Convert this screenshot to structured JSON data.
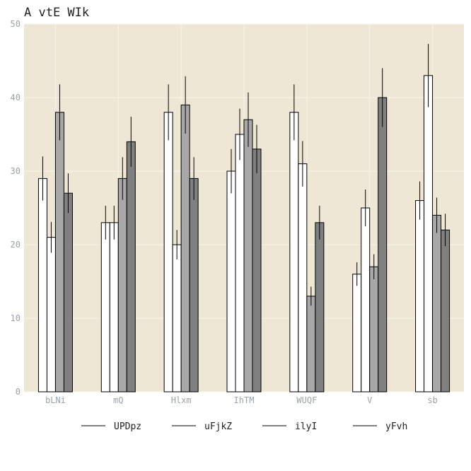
{
  "chart_data": {
    "type": "bar",
    "title": "A vtE WIk",
    "xlabel": "",
    "ylabel": "",
    "ylim": [
      0,
      50
    ],
    "yticks": [
      0,
      10,
      20,
      30,
      40,
      50
    ],
    "grid": true,
    "legend_position": "bottom",
    "background_color": "#efe7d6",
    "grid_color": "#f8f4ea",
    "categories": [
      "bLNi",
      "mQ",
      "Hlxm",
      "IhTM",
      "WUQF",
      "V",
      "sb"
    ],
    "series": [
      {
        "name": "UPDpz",
        "color": "#ffffff",
        "values": [
          29,
          23,
          38,
          30,
          38,
          16,
          26
        ],
        "errors": [
          3,
          2.3,
          3.8,
          3,
          3.8,
          1.6,
          2.6
        ]
      },
      {
        "name": "uFjkZ",
        "color": "#ffffff",
        "values": [
          21,
          23,
          20,
          35,
          31,
          25,
          43
        ],
        "errors": [
          2.1,
          2.3,
          2,
          3.5,
          3.1,
          2.5,
          4.3
        ]
      },
      {
        "name": "ilyI",
        "color": "#a8a8a8",
        "values": [
          38,
          29,
          39,
          37,
          13,
          17,
          24
        ],
        "errors": [
          3.8,
          2.9,
          3.9,
          3.7,
          1.3,
          1.7,
          2.4
        ]
      },
      {
        "name": "yFvh",
        "color": "#808080",
        "values": [
          27,
          34,
          29,
          33,
          23,
          40,
          22
        ],
        "errors": [
          2.7,
          3.4,
          2.9,
          3.3,
          2.3,
          4.0,
          2.2
        ]
      }
    ]
  }
}
